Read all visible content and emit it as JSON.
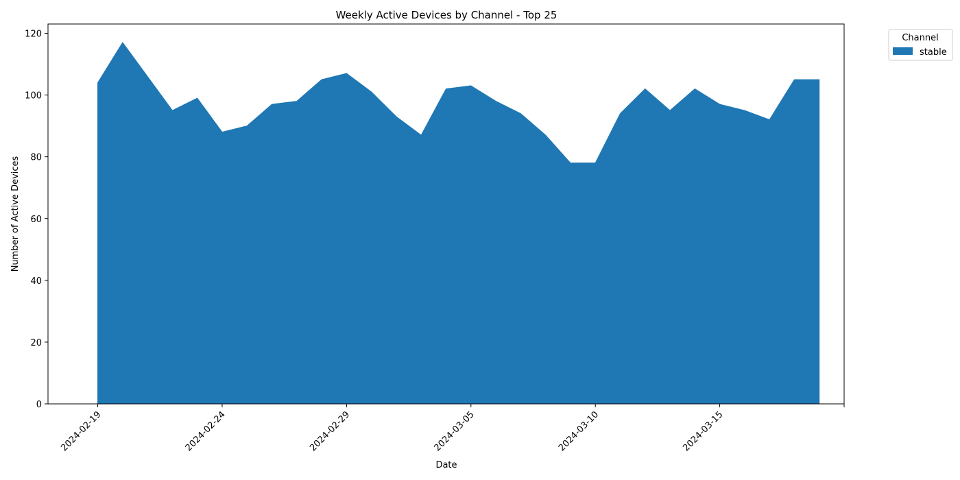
{
  "chart_data": {
    "type": "area",
    "title": "Weekly Active Devices by Channel - Top 25",
    "xlabel": "Date",
    "ylabel": "Number of Active Devices",
    "x": [
      "2024-02-19",
      "2024-02-20",
      "2024-02-21",
      "2024-02-22",
      "2024-02-23",
      "2024-02-24",
      "2024-02-25",
      "2024-02-26",
      "2024-02-27",
      "2024-02-28",
      "2024-02-29",
      "2024-03-01",
      "2024-03-02",
      "2024-03-03",
      "2024-03-04",
      "2024-03-05",
      "2024-03-06",
      "2024-03-07",
      "2024-03-08",
      "2024-03-09",
      "2024-03-10",
      "2024-03-11",
      "2024-03-12",
      "2024-03-13",
      "2024-03-14",
      "2024-03-15",
      "2024-03-16",
      "2024-03-17",
      "2024-03-18",
      "2024-03-19"
    ],
    "series": [
      {
        "name": "stable",
        "color": "#1f77b4",
        "values": [
          104,
          117,
          106,
          95,
          99,
          88,
          90,
          97,
          98,
          105,
          107,
          101,
          93,
          87,
          102,
          103,
          98,
          94,
          87,
          78,
          78,
          94,
          102,
          95,
          102,
          97,
          95,
          92,
          105,
          105
        ]
      }
    ],
    "xlim": [
      "2024-02-17",
      "2024-03-20"
    ],
    "ylim": [
      0,
      123
    ],
    "x_ticks": [
      "2024-02-19",
      "2024-02-24",
      "2024-02-29",
      "2024-03-05",
      "2024-03-10",
      "2024-03-15",
      "2024-03-20"
    ],
    "x_tick_labels": [
      "2024-02-19",
      "2024-02-24",
      "2024-02-29",
      "2024-03-05",
      "2024-03-10",
      "2024-03-15",
      ""
    ],
    "y_ticks": [
      0,
      20,
      40,
      60,
      80,
      100,
      120
    ],
    "grid": false,
    "legend": {
      "title": "Channel",
      "placement": "outside-top-right"
    }
  }
}
